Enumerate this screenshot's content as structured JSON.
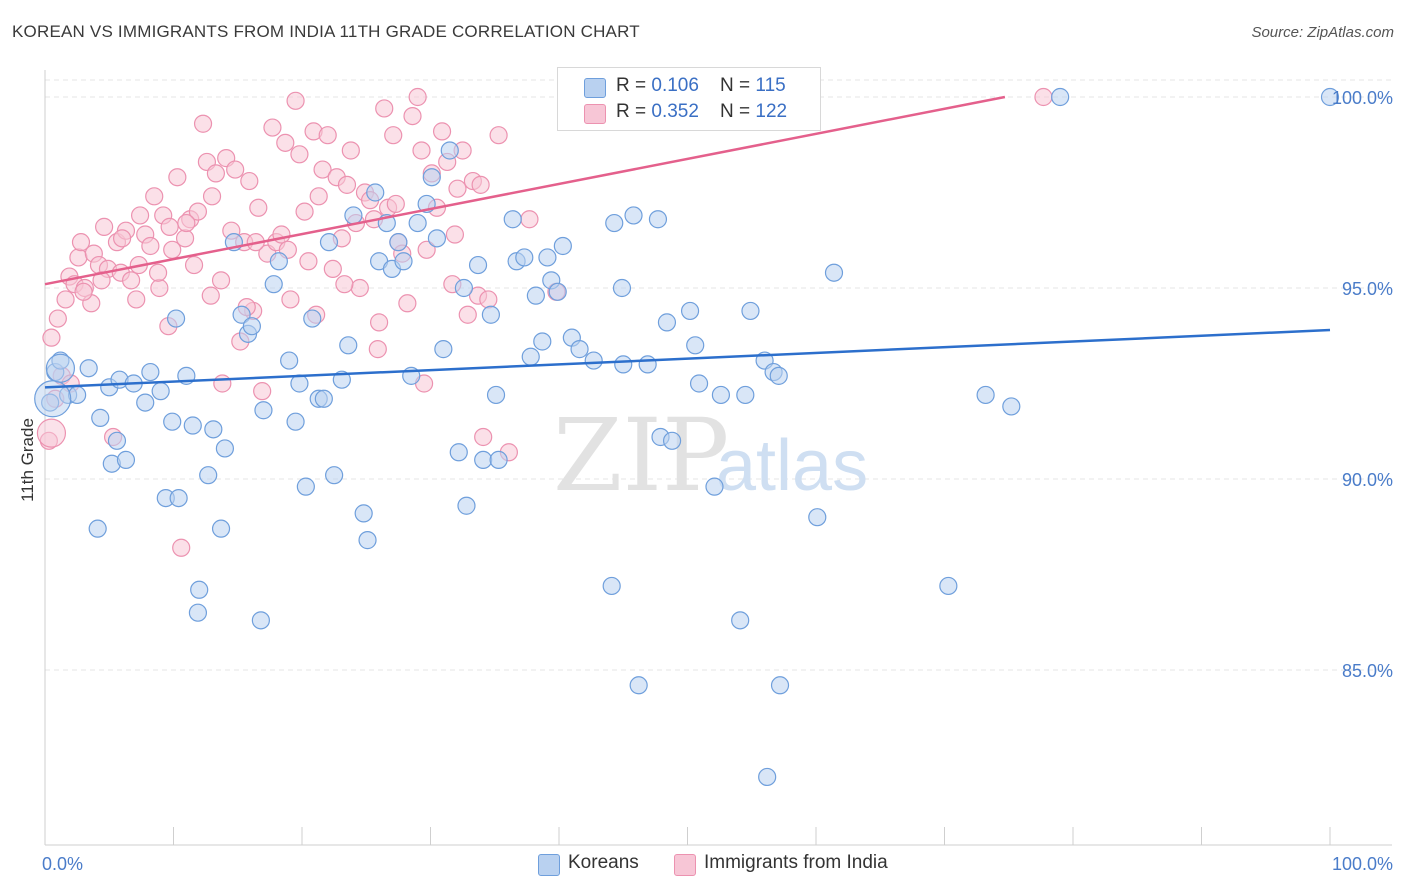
{
  "title": "KOREAN VS IMMIGRANTS FROM INDIA 11TH GRADE CORRELATION CHART",
  "source": "Source: ZipAtlas.com",
  "watermark": {
    "zip": "ZIP",
    "atlas": "atlas"
  },
  "colors": {
    "korean_fill": "#b9d1f0",
    "korean_stroke": "#6f9fdc",
    "korean_line": "#2c6fcc",
    "india_fill": "#f7c6d6",
    "india_stroke": "#ec92b0",
    "india_line": "#e4608c",
    "grid": "#e4e4e4",
    "tick_text": "#4a7cc9"
  },
  "legend": [
    {
      "r_label": "R = ",
      "r_value": "0.106",
      "n_label": "N = ",
      "n_value": "115"
    },
    {
      "r_label": "R = ",
      "r_value": "0.352",
      "n_label": "N = ",
      "n_value": "122"
    }
  ],
  "bottom_legend": [
    {
      "label": "Koreans"
    },
    {
      "label": "Immigrants from India"
    }
  ],
  "chart_data": {
    "type": "scatter",
    "title": "KOREAN VS IMMIGRANTS FROM INDIA 11TH GRADE CORRELATION CHART",
    "xlabel": "",
    "ylabel": "11th Grade",
    "xlim": [
      0,
      100
    ],
    "ylim": [
      80.5,
      100.8
    ],
    "x_tick_labels": [
      "0.0%",
      "100.0%"
    ],
    "y_ticks": [
      85,
      90,
      95,
      100
    ],
    "y_tick_labels": [
      "85.0%",
      "90.0%",
      "95.0%",
      "100.0%"
    ],
    "grid": true,
    "series": [
      {
        "name": "Koreans",
        "trend": {
          "x": [
            0,
            100
          ],
          "y": [
            92.4,
            93.9
          ]
        },
        "points": [
          [
            0.4,
            92.0
          ],
          [
            0.8,
            92.8
          ],
          [
            1.2,
            93.1
          ],
          [
            1.8,
            92.2
          ],
          [
            2.5,
            92.2
          ],
          [
            3.4,
            92.9
          ],
          [
            4.1,
            88.7
          ],
          [
            4.3,
            91.6
          ],
          [
            5.0,
            92.4
          ],
          [
            5.2,
            90.4
          ],
          [
            5.6,
            91.0
          ],
          [
            5.8,
            92.6
          ],
          [
            6.3,
            90.5
          ],
          [
            6.9,
            92.5
          ],
          [
            7.8,
            92.0
          ],
          [
            8.2,
            92.8
          ],
          [
            9.0,
            92.3
          ],
          [
            9.4,
            89.5
          ],
          [
            9.9,
            91.5
          ],
          [
            10.2,
            94.2
          ],
          [
            10.4,
            89.5
          ],
          [
            11.0,
            92.7
          ],
          [
            11.5,
            91.4
          ],
          [
            12.0,
            87.1
          ],
          [
            11.9,
            86.5
          ],
          [
            12.7,
            90.1
          ],
          [
            13.1,
            91.3
          ],
          [
            13.7,
            88.7
          ],
          [
            14.0,
            90.8
          ],
          [
            14.7,
            96.2
          ],
          [
            15.3,
            94.3
          ],
          [
            15.8,
            93.8
          ],
          [
            16.1,
            94.0
          ],
          [
            16.8,
            86.3
          ],
          [
            17.0,
            91.8
          ],
          [
            17.8,
            95.1
          ],
          [
            18.2,
            95.7
          ],
          [
            19.0,
            93.1
          ],
          [
            19.5,
            91.5
          ],
          [
            19.8,
            92.5
          ],
          [
            20.3,
            89.8
          ],
          [
            20.8,
            94.2
          ],
          [
            21.3,
            92.1
          ],
          [
            21.7,
            92.1
          ],
          [
            22.1,
            96.2
          ],
          [
            22.5,
            90.1
          ],
          [
            23.1,
            92.6
          ],
          [
            23.6,
            93.5
          ],
          [
            24.0,
            96.9
          ],
          [
            24.8,
            89.1
          ],
          [
            25.1,
            88.4
          ],
          [
            25.7,
            97.5
          ],
          [
            26.0,
            95.7
          ],
          [
            26.6,
            96.7
          ],
          [
            27.0,
            95.5
          ],
          [
            27.5,
            96.2
          ],
          [
            27.9,
            95.7
          ],
          [
            28.5,
            92.7
          ],
          [
            29.0,
            96.7
          ],
          [
            29.7,
            97.2
          ],
          [
            30.1,
            97.9
          ],
          [
            30.5,
            96.3
          ],
          [
            31.0,
            93.4
          ],
          [
            31.5,
            98.6
          ],
          [
            32.2,
            90.7
          ],
          [
            32.6,
            95.0
          ],
          [
            32.8,
            89.3
          ],
          [
            33.7,
            95.6
          ],
          [
            34.1,
            90.5
          ],
          [
            34.7,
            94.3
          ],
          [
            35.1,
            92.2
          ],
          [
            35.3,
            90.5
          ],
          [
            36.4,
            96.8
          ],
          [
            36.7,
            95.7
          ],
          [
            37.3,
            95.8
          ],
          [
            37.8,
            93.2
          ],
          [
            38.2,
            94.8
          ],
          [
            38.7,
            93.6
          ],
          [
            39.1,
            95.8
          ],
          [
            39.4,
            95.2
          ],
          [
            39.9,
            94.9
          ],
          [
            40.3,
            96.1
          ],
          [
            41.0,
            93.7
          ],
          [
            41.6,
            93.4
          ],
          [
            42.7,
            93.1
          ],
          [
            44.1,
            87.2
          ],
          [
            44.3,
            96.7
          ],
          [
            44.9,
            95.0
          ],
          [
            45.0,
            93.0
          ],
          [
            45.8,
            96.9
          ],
          [
            46.2,
            84.6
          ],
          [
            46.9,
            93.0
          ],
          [
            47.7,
            96.8
          ],
          [
            47.9,
            91.1
          ],
          [
            48.4,
            94.1
          ],
          [
            48.8,
            91.0
          ],
          [
            50.2,
            94.4
          ],
          [
            50.6,
            93.5
          ],
          [
            50.9,
            92.5
          ],
          [
            52.1,
            89.8
          ],
          [
            52.6,
            92.2
          ],
          [
            54.1,
            86.3
          ],
          [
            54.5,
            92.2
          ],
          [
            54.9,
            94.4
          ],
          [
            56.0,
            93.1
          ],
          [
            56.7,
            92.8
          ],
          [
            57.1,
            92.7
          ],
          [
            57.2,
            84.6
          ],
          [
            60.1,
            89.0
          ],
          [
            61.4,
            95.4
          ],
          [
            70.3,
            87.2
          ],
          [
            73.2,
            92.2
          ],
          [
            75.2,
            91.9
          ],
          [
            79.0,
            100.0
          ],
          [
            100.0,
            100.0
          ],
          [
            56.2,
            82.2
          ]
        ]
      },
      {
        "name": "Immigrants from India",
        "trend": {
          "x": [
            0,
            74.7
          ],
          "y": [
            95.1,
            100.0
          ]
        },
        "points": [
          [
            0.3,
            91.0
          ],
          [
            0.5,
            93.7
          ],
          [
            0.8,
            92.1
          ],
          [
            1.0,
            94.2
          ],
          [
            1.6,
            94.7
          ],
          [
            1.9,
            95.3
          ],
          [
            2.3,
            95.1
          ],
          [
            2.6,
            95.8
          ],
          [
            2.8,
            96.2
          ],
          [
            3.1,
            95.0
          ],
          [
            3.6,
            94.6
          ],
          [
            3.8,
            95.9
          ],
          [
            4.2,
            95.6
          ],
          [
            4.6,
            96.6
          ],
          [
            4.9,
            95.5
          ],
          [
            5.3,
            91.1
          ],
          [
            5.6,
            96.2
          ],
          [
            5.9,
            95.4
          ],
          [
            6.3,
            96.5
          ],
          [
            6.7,
            95.2
          ],
          [
            7.1,
            94.7
          ],
          [
            7.4,
            96.9
          ],
          [
            7.8,
            96.4
          ],
          [
            8.2,
            96.1
          ],
          [
            8.5,
            97.4
          ],
          [
            8.9,
            95.0
          ],
          [
            9.2,
            96.9
          ],
          [
            9.6,
            94.0
          ],
          [
            9.9,
            96.0
          ],
          [
            10.3,
            97.9
          ],
          [
            10.6,
            88.2
          ],
          [
            10.9,
            96.3
          ],
          [
            11.3,
            96.8
          ],
          [
            11.6,
            95.6
          ],
          [
            11.9,
            97.0
          ],
          [
            12.3,
            99.3
          ],
          [
            12.6,
            98.3
          ],
          [
            13.0,
            97.4
          ],
          [
            13.3,
            98.0
          ],
          [
            13.7,
            95.2
          ],
          [
            14.1,
            98.4
          ],
          [
            14.5,
            96.5
          ],
          [
            14.8,
            98.1
          ],
          [
            15.2,
            93.6
          ],
          [
            15.5,
            96.2
          ],
          [
            15.9,
            97.8
          ],
          [
            16.2,
            94.4
          ],
          [
            16.6,
            97.1
          ],
          [
            16.9,
            92.3
          ],
          [
            17.3,
            95.9
          ],
          [
            17.7,
            99.2
          ],
          [
            18.0,
            96.2
          ],
          [
            18.4,
            96.4
          ],
          [
            18.7,
            98.8
          ],
          [
            19.1,
            94.7
          ],
          [
            19.5,
            99.9
          ],
          [
            19.8,
            98.5
          ],
          [
            20.2,
            97.0
          ],
          [
            20.5,
            95.7
          ],
          [
            20.9,
            99.1
          ],
          [
            21.3,
            97.4
          ],
          [
            21.6,
            98.1
          ],
          [
            22.0,
            99.0
          ],
          [
            22.4,
            95.5
          ],
          [
            22.7,
            97.9
          ],
          [
            23.1,
            96.3
          ],
          [
            23.5,
            97.7
          ],
          [
            23.8,
            98.6
          ],
          [
            24.2,
            96.7
          ],
          [
            24.5,
            95.0
          ],
          [
            24.9,
            97.5
          ],
          [
            25.3,
            97.3
          ],
          [
            25.6,
            96.8
          ],
          [
            26.0,
            94.1
          ],
          [
            26.4,
            99.7
          ],
          [
            26.7,
            97.1
          ],
          [
            27.1,
            99.0
          ],
          [
            27.5,
            96.2
          ],
          [
            27.8,
            95.9
          ],
          [
            28.2,
            94.6
          ],
          [
            28.6,
            99.5
          ],
          [
            29.0,
            100.0
          ],
          [
            29.3,
            98.6
          ],
          [
            29.7,
            96.0
          ],
          [
            30.1,
            98.0
          ],
          [
            30.5,
            97.1
          ],
          [
            30.9,
            99.1
          ],
          [
            31.3,
            98.3
          ],
          [
            31.7,
            95.1
          ],
          [
            32.1,
            97.6
          ],
          [
            32.5,
            98.6
          ],
          [
            32.9,
            94.3
          ],
          [
            33.3,
            97.8
          ],
          [
            33.7,
            94.8
          ],
          [
            34.1,
            91.1
          ],
          [
            34.5,
            94.7
          ],
          [
            35.3,
            99.0
          ],
          [
            36.1,
            90.7
          ],
          [
            37.7,
            96.8
          ],
          [
            39.8,
            94.9
          ],
          [
            77.7,
            100.0
          ],
          [
            1.3,
            92.7
          ],
          [
            3.0,
            94.9
          ],
          [
            6.0,
            96.3
          ],
          [
            8.8,
            95.4
          ],
          [
            11.0,
            96.7
          ],
          [
            13.8,
            92.5
          ],
          [
            16.4,
            96.2
          ],
          [
            18.9,
            96.0
          ],
          [
            21.1,
            94.3
          ],
          [
            23.3,
            95.1
          ],
          [
            25.9,
            93.4
          ],
          [
            27.3,
            97.2
          ],
          [
            29.5,
            92.5
          ],
          [
            31.9,
            96.4
          ],
          [
            33.9,
            97.7
          ],
          [
            2.0,
            92.5
          ],
          [
            4.4,
            95.2
          ],
          [
            7.3,
            95.6
          ],
          [
            9.7,
            96.6
          ],
          [
            12.9,
            94.8
          ],
          [
            15.7,
            94.5
          ]
        ]
      }
    ]
  }
}
